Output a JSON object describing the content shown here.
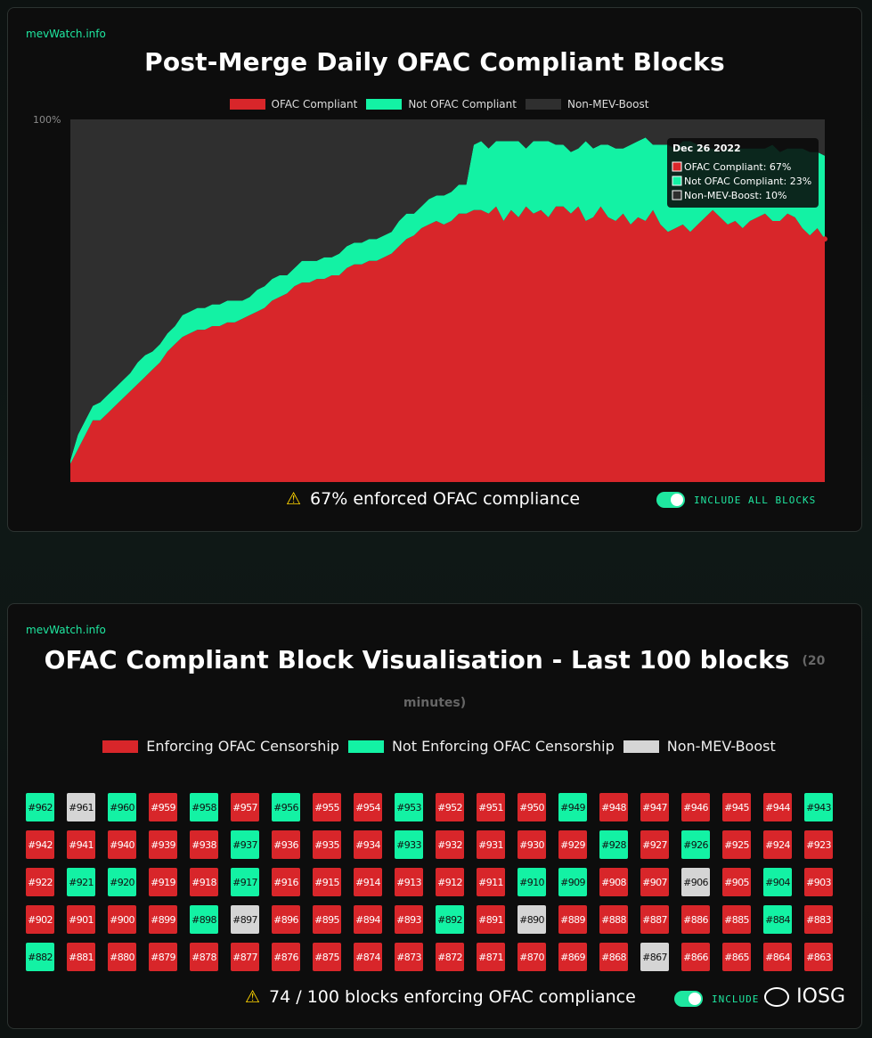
{
  "card1": {
    "brand": "mevWatch.info",
    "title": "Post-Merge Daily OFAC Compliant Blocks",
    "legend": [
      {
        "label": "OFAC Compliant",
        "color": "#d8262a"
      },
      {
        "label": "Not OFAC Compliant",
        "color": "#13f2a4"
      },
      {
        "label": "Non-MEV-Boost",
        "color": "#2f2f2f"
      }
    ],
    "y_top_label": "100%",
    "tooltip": {
      "date": "Dec 26 2022",
      "lines": [
        "OFAC Compliant: 67%",
        "Not OFAC Compliant: 23%",
        "Non-MEV-Boost: 10%"
      ]
    },
    "footer_icon": "warning-icon",
    "footer": "67% enforced OFAC compliance",
    "toggle_label": "INCLUDE ALL BLOCKS"
  },
  "chart_data": {
    "type": "area",
    "title": "Post-Merge Daily OFAC Compliant Blocks",
    "stacked": true,
    "ylim": [
      0,
      100
    ],
    "x_range": [
      "Sep 15 2022",
      "Dec 26 2022"
    ],
    "series": [
      {
        "name": "OFAC Compliant",
        "color": "#d8262a",
        "values": [
          5,
          9,
          13,
          17,
          17,
          19,
          21,
          23,
          25,
          27,
          29,
          31,
          33,
          36,
          38,
          40,
          41,
          42,
          42,
          43,
          43,
          44,
          44,
          45,
          46,
          47,
          48,
          50,
          51,
          52,
          54,
          55,
          55,
          56,
          56,
          57,
          57,
          59,
          60,
          60,
          61,
          61,
          62,
          63,
          65,
          67,
          68,
          70,
          71,
          72,
          71,
          72,
          74,
          74,
          75,
          75,
          74,
          76,
          72,
          75,
          73,
          76,
          74,
          75,
          73,
          76,
          76,
          74,
          76,
          72,
          73,
          76,
          73,
          72,
          74,
          71,
          73,
          72,
          75,
          71,
          69,
          70,
          71,
          69,
          71,
          73,
          75,
          73,
          71,
          72,
          70,
          72,
          73,
          74,
          72,
          72,
          74,
          73,
          70,
          68,
          70,
          67
        ]
      },
      {
        "name": "Not OFAC Compliant",
        "color": "#13f2a4",
        "values": [
          1,
          4,
          4,
          4,
          5,
          5,
          5,
          5,
          5,
          6,
          6,
          5,
          5,
          5,
          5,
          6,
          6,
          6,
          6,
          6,
          6,
          6,
          6,
          5,
          5,
          6,
          6,
          6,
          6,
          5,
          5,
          6,
          6,
          5,
          6,
          5,
          6,
          6,
          6,
          6,
          6,
          6,
          6,
          6,
          7,
          7,
          6,
          6,
          7,
          7,
          8,
          8,
          8,
          8,
          18,
          19,
          18,
          18,
          22,
          19,
          21,
          16,
          20,
          19,
          21,
          17,
          17,
          17,
          16,
          22,
          19,
          17,
          20,
          20,
          18,
          22,
          21,
          23,
          18,
          22,
          24,
          22,
          23,
          25,
          22,
          19,
          17,
          18,
          21,
          20,
          22,
          20,
          19,
          18,
          21,
          19,
          18,
          19,
          22,
          23,
          21,
          23
        ]
      },
      {
        "name": "Non-MEV-Boost",
        "color": "#2f2f2f",
        "values": [
          94,
          87,
          83,
          79,
          78,
          76,
          74,
          72,
          70,
          67,
          65,
          64,
          62,
          59,
          57,
          54,
          53,
          52,
          52,
          51,
          51,
          50,
          50,
          50,
          49,
          47,
          46,
          44,
          43,
          43,
          41,
          39,
          39,
          39,
          38,
          38,
          37,
          35,
          34,
          34,
          33,
          33,
          32,
          31,
          28,
          26,
          26,
          24,
          22,
          21,
          21,
          20,
          18,
          18,
          7,
          6,
          8,
          6,
          6,
          6,
          6,
          8,
          6,
          6,
          6,
          7,
          7,
          9,
          8,
          6,
          8,
          7,
          7,
          8,
          8,
          7,
          6,
          5,
          7,
          7,
          7,
          8,
          6,
          6,
          7,
          8,
          8,
          9,
          8,
          8,
          8,
          8,
          8,
          8,
          7,
          9,
          8,
          8,
          8,
          9,
          9,
          10
        ]
      }
    ]
  },
  "card2": {
    "brand": "mevWatch.info",
    "title": "OFAC Compliant Block Visualisation - Last 100 blocks",
    "title_suffix": "(20",
    "subtitle": "minutes)",
    "legend": [
      {
        "label": "Enforcing OFAC Censorship",
        "color": "#d8262a"
      },
      {
        "label": "Not Enforcing OFAC Censorship",
        "color": "#13f2a4"
      },
      {
        "label": "Non-MEV-Boost",
        "color": "#d5d5d5"
      }
    ],
    "blocks": [
      {
        "id": "#962",
        "s": "n"
      },
      {
        "id": "#961",
        "s": "m"
      },
      {
        "id": "#960",
        "s": "n"
      },
      {
        "id": "#959",
        "s": "c"
      },
      {
        "id": "#958",
        "s": "n"
      },
      {
        "id": "#957",
        "s": "c"
      },
      {
        "id": "#956",
        "s": "n"
      },
      {
        "id": "#955",
        "s": "c"
      },
      {
        "id": "#954",
        "s": "c"
      },
      {
        "id": "#953",
        "s": "n"
      },
      {
        "id": "#952",
        "s": "c"
      },
      {
        "id": "#951",
        "s": "c"
      },
      {
        "id": "#950",
        "s": "c"
      },
      {
        "id": "#949",
        "s": "n"
      },
      {
        "id": "#948",
        "s": "c"
      },
      {
        "id": "#947",
        "s": "c"
      },
      {
        "id": "#946",
        "s": "c"
      },
      {
        "id": "#945",
        "s": "c"
      },
      {
        "id": "#944",
        "s": "c"
      },
      {
        "id": "#943",
        "s": "n"
      },
      {
        "id": "#942",
        "s": "c"
      },
      {
        "id": "#941",
        "s": "c"
      },
      {
        "id": "#940",
        "s": "c"
      },
      {
        "id": "#939",
        "s": "c"
      },
      {
        "id": "#938",
        "s": "c"
      },
      {
        "id": "#937",
        "s": "n"
      },
      {
        "id": "#936",
        "s": "c"
      },
      {
        "id": "#935",
        "s": "c"
      },
      {
        "id": "#934",
        "s": "c"
      },
      {
        "id": "#933",
        "s": "n"
      },
      {
        "id": "#932",
        "s": "c"
      },
      {
        "id": "#931",
        "s": "c"
      },
      {
        "id": "#930",
        "s": "c"
      },
      {
        "id": "#929",
        "s": "c"
      },
      {
        "id": "#928",
        "s": "n"
      },
      {
        "id": "#927",
        "s": "c"
      },
      {
        "id": "#926",
        "s": "n"
      },
      {
        "id": "#925",
        "s": "c"
      },
      {
        "id": "#924",
        "s": "c"
      },
      {
        "id": "#923",
        "s": "c"
      },
      {
        "id": "#922",
        "s": "c"
      },
      {
        "id": "#921",
        "s": "n"
      },
      {
        "id": "#920",
        "s": "n"
      },
      {
        "id": "#919",
        "s": "c"
      },
      {
        "id": "#918",
        "s": "c"
      },
      {
        "id": "#917",
        "s": "n"
      },
      {
        "id": "#916",
        "s": "c"
      },
      {
        "id": "#915",
        "s": "c"
      },
      {
        "id": "#914",
        "s": "c"
      },
      {
        "id": "#913",
        "s": "c"
      },
      {
        "id": "#912",
        "s": "c"
      },
      {
        "id": "#911",
        "s": "c"
      },
      {
        "id": "#910",
        "s": "n"
      },
      {
        "id": "#909",
        "s": "n"
      },
      {
        "id": "#908",
        "s": "c"
      },
      {
        "id": "#907",
        "s": "c"
      },
      {
        "id": "#906",
        "s": "m"
      },
      {
        "id": "#905",
        "s": "c"
      },
      {
        "id": "#904",
        "s": "n"
      },
      {
        "id": "#903",
        "s": "c"
      },
      {
        "id": "#902",
        "s": "c"
      },
      {
        "id": "#901",
        "s": "c"
      },
      {
        "id": "#900",
        "s": "c"
      },
      {
        "id": "#899",
        "s": "c"
      },
      {
        "id": "#898",
        "s": "n"
      },
      {
        "id": "#897",
        "s": "m"
      },
      {
        "id": "#896",
        "s": "c"
      },
      {
        "id": "#895",
        "s": "c"
      },
      {
        "id": "#894",
        "s": "c"
      },
      {
        "id": "#893",
        "s": "c"
      },
      {
        "id": "#892",
        "s": "n"
      },
      {
        "id": "#891",
        "s": "c"
      },
      {
        "id": "#890",
        "s": "m"
      },
      {
        "id": "#889",
        "s": "c"
      },
      {
        "id": "#888",
        "s": "c"
      },
      {
        "id": "#887",
        "s": "c"
      },
      {
        "id": "#886",
        "s": "c"
      },
      {
        "id": "#885",
        "s": "c"
      },
      {
        "id": "#884",
        "s": "n"
      },
      {
        "id": "#883",
        "s": "c"
      },
      {
        "id": "#882",
        "s": "n"
      },
      {
        "id": "#881",
        "s": "c"
      },
      {
        "id": "#880",
        "s": "c"
      },
      {
        "id": "#879",
        "s": "c"
      },
      {
        "id": "#878",
        "s": "c"
      },
      {
        "id": "#877",
        "s": "c"
      },
      {
        "id": "#876",
        "s": "c"
      },
      {
        "id": "#875",
        "s": "c"
      },
      {
        "id": "#874",
        "s": "c"
      },
      {
        "id": "#873",
        "s": "c"
      },
      {
        "id": "#872",
        "s": "c"
      },
      {
        "id": "#871",
        "s": "c"
      },
      {
        "id": "#870",
        "s": "c"
      },
      {
        "id": "#869",
        "s": "c"
      },
      {
        "id": "#868",
        "s": "c"
      },
      {
        "id": "#867",
        "s": "m"
      },
      {
        "id": "#866",
        "s": "c"
      },
      {
        "id": "#865",
        "s": "c"
      },
      {
        "id": "#864",
        "s": "c"
      },
      {
        "id": "#863",
        "s": "c"
      }
    ],
    "footer_icon": "warning-icon",
    "footer": "74 / 100 blocks enforcing OFAC compliance",
    "toggle_label": "INCLUDE"
  },
  "watermark": "IOSG"
}
